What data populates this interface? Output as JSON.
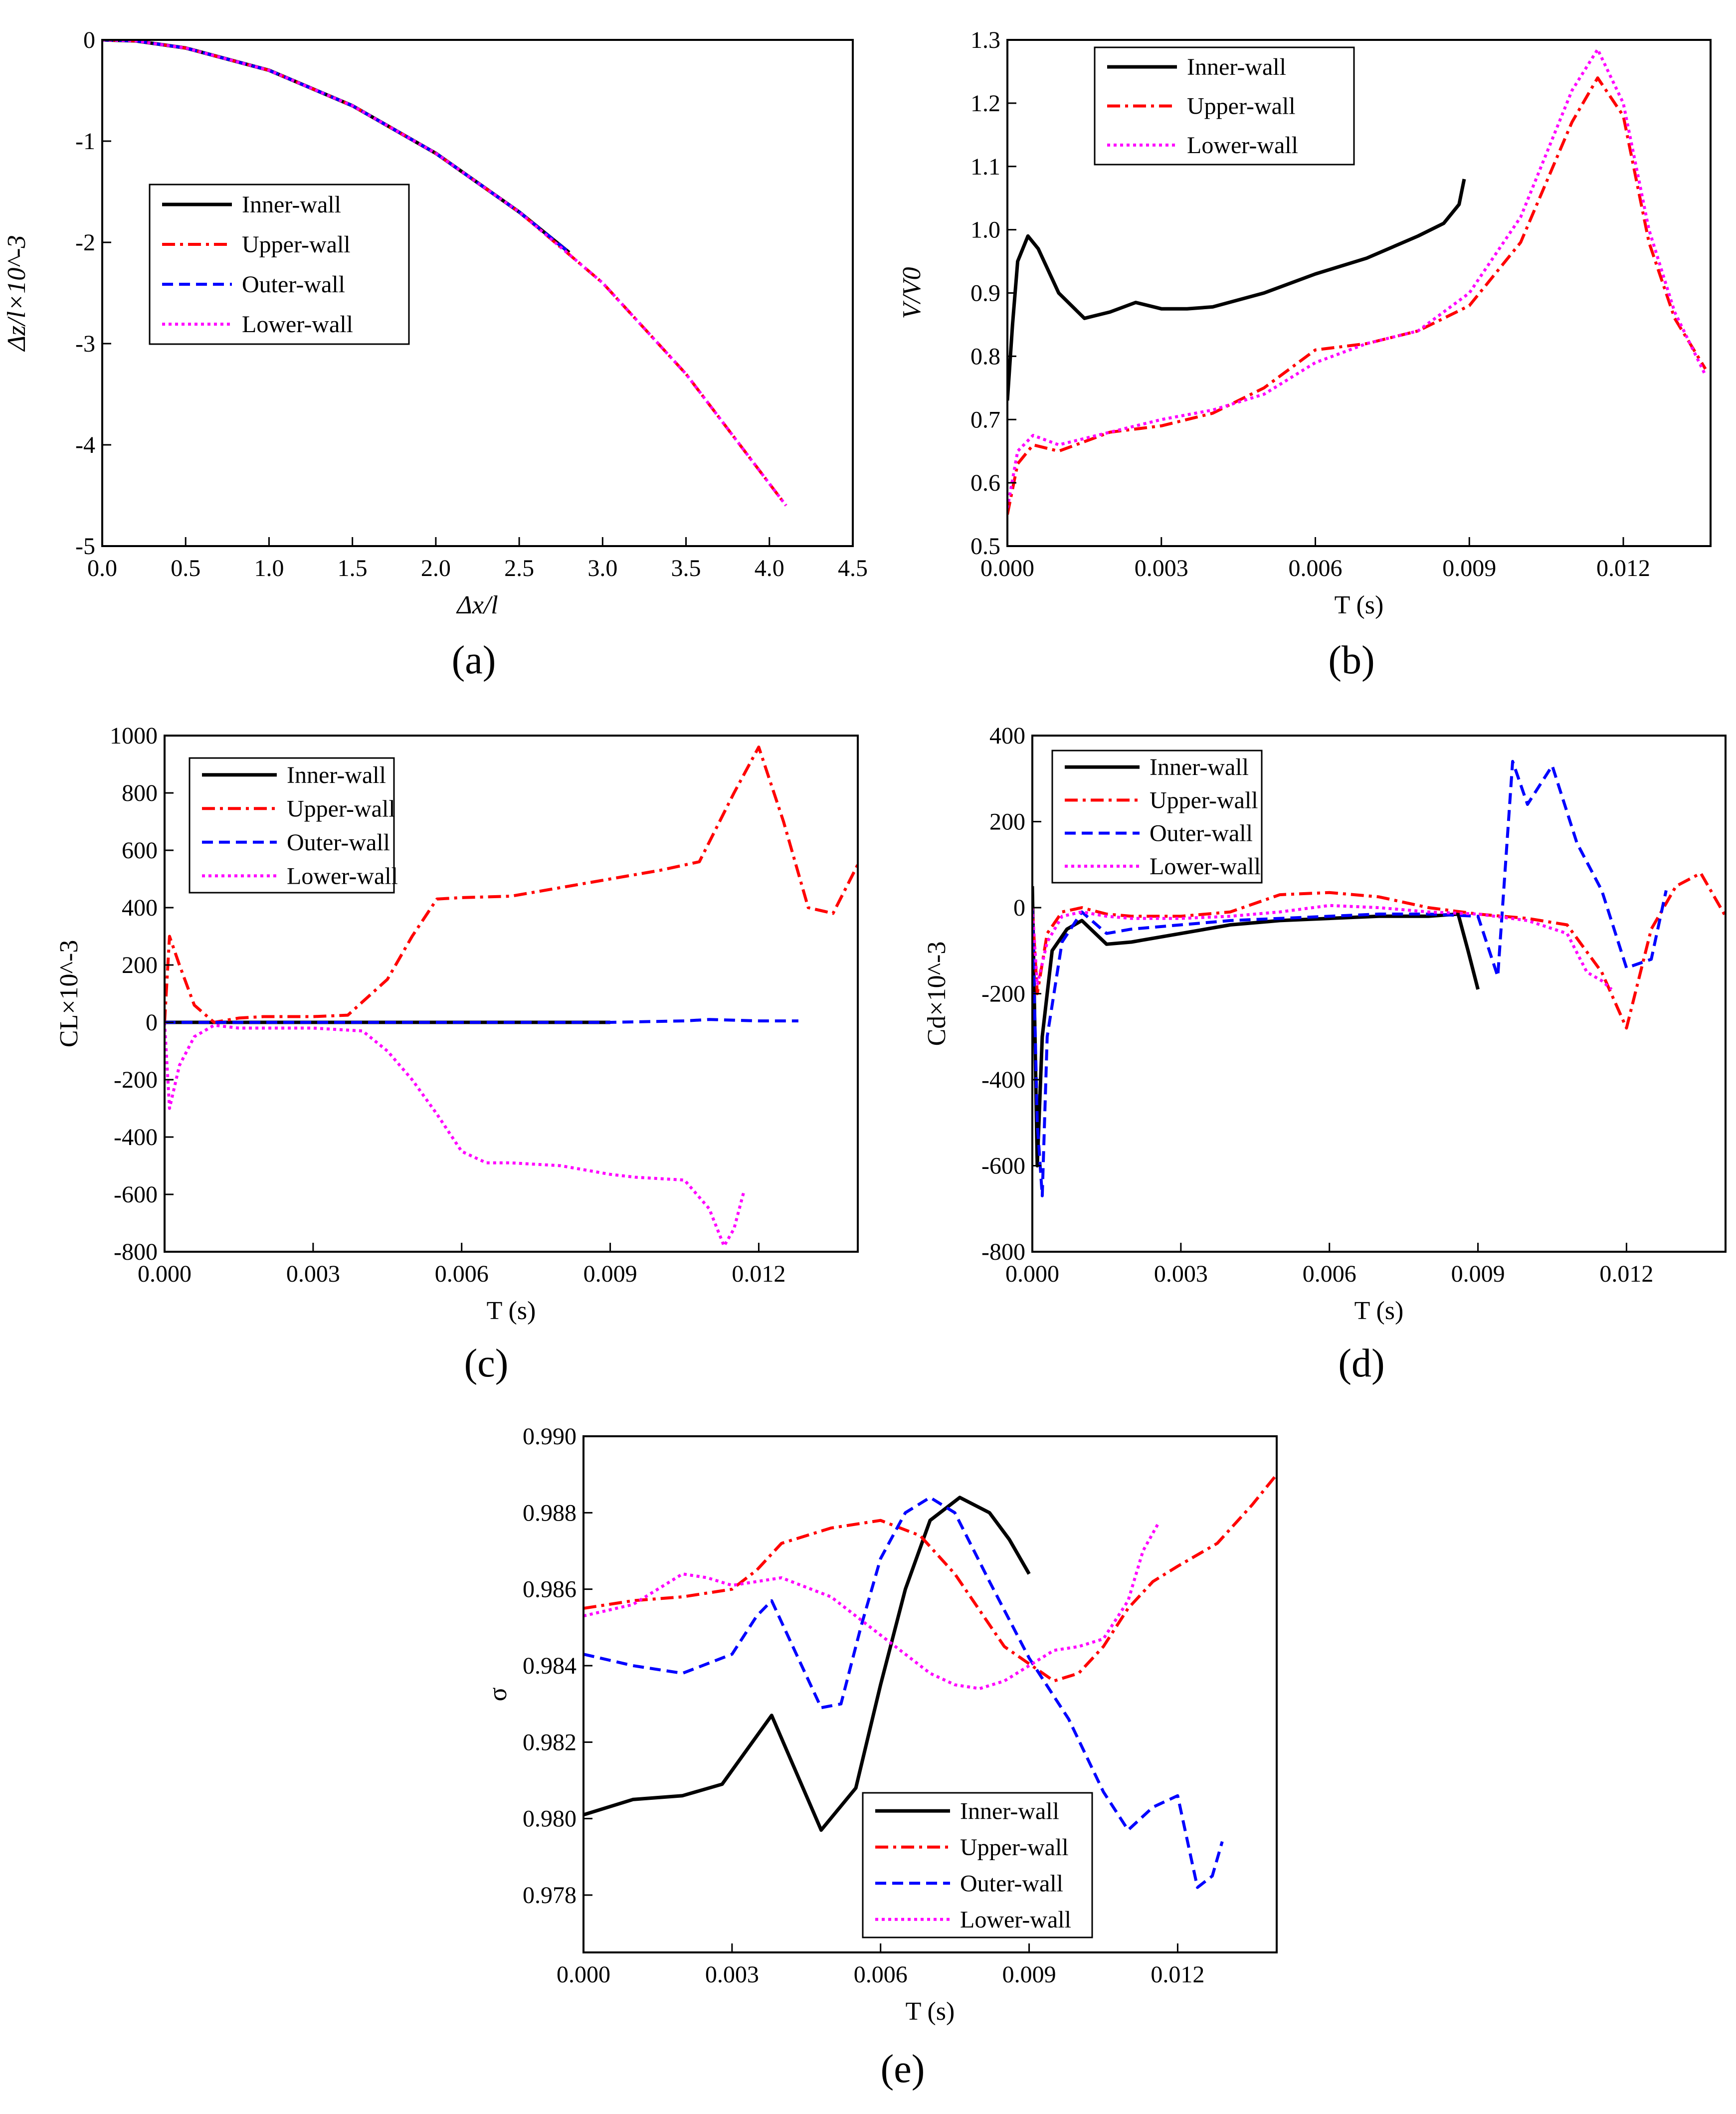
{
  "figure": {
    "colors": {
      "Inner-wall": "#000000",
      "Upper-wall": "#ff0000",
      "Outer-wall": "#0000ff",
      "Lower-wall": "#ff00ff"
    }
  },
  "chart_data": [
    {
      "id": "a",
      "type": "line",
      "panel_label": "(a)",
      "xlabel": "Δx/l",
      "ylabel": "Δz/l×10^-3",
      "xlim": [
        0,
        4.5
      ],
      "ylim": [
        -5,
        0
      ],
      "xticks": [
        0,
        0.5,
        1,
        1.5,
        2,
        2.5,
        3,
        3.5,
        4,
        4.5
      ],
      "xtick_labels": [
        "0.0",
        "0.5",
        "1.0",
        "1.5",
        "2.0",
        "2.5",
        "3.0",
        "3.5",
        "4.0",
        "4.5"
      ],
      "yticks": [
        -5,
        -4,
        -3,
        -2,
        -1,
        0
      ],
      "ytick_labels": [
        "-5",
        "-4",
        "-3",
        "-2",
        "-1",
        "0"
      ],
      "legend_position": "center-left",
      "series": [
        {
          "name": "Inner-wall",
          "x": [
            0,
            0.2,
            0.5,
            1.0,
            1.5,
            2.0,
            2.5,
            2.8
          ],
          "y": [
            0,
            -0.01,
            -0.08,
            -0.3,
            -0.65,
            -1.12,
            -1.7,
            -2.1
          ]
        },
        {
          "name": "Upper-wall",
          "x": [
            0,
            0.2,
            0.5,
            1.0,
            1.5,
            2.0,
            2.5,
            3.0,
            3.5,
            4.1
          ],
          "y": [
            0,
            -0.01,
            -0.08,
            -0.3,
            -0.65,
            -1.12,
            -1.7,
            -2.4,
            -3.3,
            -4.6
          ]
        },
        {
          "name": "Outer-wall",
          "x": [
            0,
            0.2,
            0.5,
            1.0,
            1.5,
            2.0,
            2.5,
            2.8
          ],
          "y": [
            0,
            -0.01,
            -0.08,
            -0.3,
            -0.65,
            -1.12,
            -1.7,
            -2.1
          ]
        },
        {
          "name": "Lower-wall",
          "x": [
            0,
            0.2,
            0.5,
            1.0,
            1.5,
            2.0,
            2.5,
            3.0,
            3.5,
            4.1
          ],
          "y": [
            0,
            -0.01,
            -0.08,
            -0.3,
            -0.65,
            -1.12,
            -1.7,
            -2.4,
            -3.3,
            -4.6
          ]
        }
      ]
    },
    {
      "id": "b",
      "type": "line",
      "panel_label": "(b)",
      "xlabel": "T (s)",
      "ylabel": "V/V0",
      "xlim": [
        0,
        0.0137
      ],
      "ylim": [
        0.5,
        1.3
      ],
      "xticks": [
        0,
        0.003,
        0.006,
        0.009,
        0.012
      ],
      "xtick_labels": [
        "0.000",
        "0.003",
        "0.006",
        "0.009",
        "0.012"
      ],
      "yticks": [
        0.5,
        0.6,
        0.7,
        0.8,
        0.9,
        1.0,
        1.1,
        1.2,
        1.3
      ],
      "ytick_labels": [
        "0.5",
        "0.6",
        "0.7",
        "0.8",
        "0.9",
        "1.0",
        "1.1",
        "1.2",
        "1.3"
      ],
      "legend_position": "top-left",
      "series": [
        {
          "name": "Inner-wall",
          "x": [
            0,
            0.0001,
            0.0002,
            0.0004,
            0.0006,
            0.001,
            0.0015,
            0.002,
            0.0025,
            0.003,
            0.0035,
            0.004,
            0.005,
            0.006,
            0.007,
            0.008,
            0.0085,
            0.0088,
            0.0089
          ],
          "y": [
            0.73,
            0.85,
            0.95,
            0.99,
            0.97,
            0.9,
            0.86,
            0.87,
            0.885,
            0.875,
            0.875,
            0.878,
            0.9,
            0.93,
            0.955,
            0.99,
            1.01,
            1.04,
            1.08
          ]
        },
        {
          "name": "Upper-wall",
          "x": [
            0,
            0.0002,
            0.0005,
            0.001,
            0.002,
            0.003,
            0.004,
            0.005,
            0.006,
            0.007,
            0.008,
            0.009,
            0.01,
            0.011,
            0.0115,
            0.012,
            0.0125,
            0.013,
            0.0136
          ],
          "y": [
            0.55,
            0.63,
            0.66,
            0.65,
            0.68,
            0.69,
            0.71,
            0.75,
            0.81,
            0.82,
            0.84,
            0.88,
            0.98,
            1.17,
            1.24,
            1.18,
            0.98,
            0.86,
            0.78
          ]
        },
        {
          "name": "Lower-wall",
          "x": [
            0,
            0.0002,
            0.0005,
            0.001,
            0.002,
            0.003,
            0.004,
            0.005,
            0.006,
            0.007,
            0.008,
            0.009,
            0.01,
            0.011,
            0.0115,
            0.012,
            0.0125,
            0.013,
            0.0136
          ],
          "y": [
            0.56,
            0.65,
            0.675,
            0.66,
            0.68,
            0.7,
            0.715,
            0.74,
            0.79,
            0.82,
            0.84,
            0.9,
            1.02,
            1.22,
            1.285,
            1.2,
            1.0,
            0.87,
            0.77
          ]
        }
      ]
    },
    {
      "id": "c",
      "type": "line",
      "panel_label": "(c)",
      "xlabel": "T (s)",
      "ylabel": "CL×10^-3",
      "xlim": [
        0,
        0.014
      ],
      "ylim": [
        -800,
        1000
      ],
      "xticks": [
        0,
        0.003,
        0.006,
        0.009,
        0.012
      ],
      "xtick_labels": [
        "0.000",
        "0.003",
        "0.006",
        "0.009",
        "0.012"
      ],
      "yticks": [
        -800,
        -600,
        -400,
        -200,
        0,
        200,
        400,
        600,
        800,
        1000
      ],
      "ytick_labels": [
        "-800",
        "-600",
        "-400",
        "-200",
        "0",
        "200",
        "400",
        "600",
        "800",
        "1000"
      ],
      "legend_position": "top-left",
      "series": [
        {
          "name": "Inner-wall",
          "x": [
            0,
            0.003,
            0.006,
            0.009
          ],
          "y": [
            0,
            0,
            0,
            0
          ]
        },
        {
          "name": "Upper-wall",
          "x": [
            0,
            0.0001,
            0.0003,
            0.0006,
            0.001,
            0.0015,
            0.002,
            0.003,
            0.0037,
            0.0045,
            0.005,
            0.0055,
            0.006,
            0.007,
            0.008,
            0.009,
            0.01,
            0.0108,
            0.0115,
            0.012,
            0.0125,
            0.013,
            0.0135,
            0.014
          ],
          "y": [
            0,
            300,
            200,
            60,
            0,
            15,
            20,
            20,
            25,
            150,
            300,
            430,
            435,
            440,
            470,
            500,
            530,
            560,
            800,
            960,
            700,
            400,
            380,
            550
          ]
        },
        {
          "name": "Outer-wall",
          "x": [
            0,
            0.003,
            0.006,
            0.009,
            0.0105,
            0.011,
            0.012,
            0.0128
          ],
          "y": [
            0,
            0,
            0,
            0,
            5,
            10,
            5,
            5
          ]
        },
        {
          "name": "Lower-wall",
          "x": [
            0,
            0.0001,
            0.0003,
            0.0006,
            0.001,
            0.0015,
            0.002,
            0.003,
            0.0035,
            0.004,
            0.0045,
            0.005,
            0.0055,
            0.006,
            0.0065,
            0.007,
            0.008,
            0.009,
            0.0095,
            0.0105,
            0.011,
            0.0113,
            0.0115,
            0.0117
          ],
          "y": [
            0,
            -300,
            -150,
            -50,
            -10,
            -20,
            -20,
            -20,
            -25,
            -30,
            -100,
            -200,
            -320,
            -450,
            -490,
            -490,
            -500,
            -530,
            -540,
            -550,
            -650,
            -780,
            -720,
            -590
          ]
        }
      ]
    },
    {
      "id": "d",
      "type": "line",
      "panel_label": "(d)",
      "xlabel": "T (s)",
      "ylabel": "Cd×10^-3",
      "xlim": [
        0,
        0.014
      ],
      "ylim": [
        -800,
        400
      ],
      "xticks": [
        0,
        0.003,
        0.006,
        0.009,
        0.012
      ],
      "xtick_labels": [
        "0.000",
        "0.003",
        "0.006",
        "0.009",
        "0.012"
      ],
      "yticks": [
        -800,
        -600,
        -400,
        -200,
        0,
        200,
        400
      ],
      "ytick_labels": [
        "-800",
        "-600",
        "-400",
        "-200",
        "0",
        "200",
        "400"
      ],
      "legend_position": "top-left",
      "series": [
        {
          "name": "Inner-wall",
          "x": [
            0,
            0.0001,
            0.0002,
            0.0004,
            0.0007,
            0.001,
            0.0015,
            0.002,
            0.003,
            0.004,
            0.005,
            0.006,
            0.007,
            0.008,
            0.0086,
            0.0088,
            0.009
          ],
          "y": [
            50,
            -600,
            -300,
            -100,
            -50,
            -30,
            -85,
            -80,
            -60,
            -40,
            -30,
            -25,
            -20,
            -20,
            -15,
            -100,
            -190
          ]
        },
        {
          "name": "Upper-wall",
          "x": [
            0,
            0.0001,
            0.0003,
            0.0006,
            0.001,
            0.0015,
            0.002,
            0.003,
            0.004,
            0.005,
            0.006,
            0.007,
            0.008,
            0.009,
            0.01,
            0.0108,
            0.0115,
            0.012,
            0.0125,
            0.013,
            0.0135,
            0.014
          ],
          "y": [
            0,
            -200,
            -60,
            -10,
            0,
            -15,
            -20,
            -20,
            -10,
            30,
            35,
            25,
            0,
            -15,
            -25,
            -40,
            -150,
            -280,
            -50,
            50,
            80,
            -20
          ]
        },
        {
          "name": "Outer-wall",
          "x": [
            0,
            0.0001,
            0.0002,
            0.0003,
            0.0006,
            0.001,
            0.0015,
            0.002,
            0.003,
            0.004,
            0.005,
            0.006,
            0.007,
            0.008,
            0.009,
            0.0094,
            0.0097,
            0.01,
            0.0105,
            0.011,
            0.0115,
            0.012,
            0.0125,
            0.0128
          ],
          "y": [
            0,
            -500,
            -670,
            -300,
            -80,
            -10,
            -60,
            -50,
            -40,
            -30,
            -25,
            -20,
            -15,
            -15,
            -20,
            -160,
            340,
            240,
            330,
            150,
            40,
            -140,
            -120,
            40
          ]
        },
        {
          "name": "Lower-wall",
          "x": [
            0,
            0.0001,
            0.0003,
            0.0006,
            0.001,
            0.0015,
            0.002,
            0.003,
            0.004,
            0.005,
            0.006,
            0.007,
            0.008,
            0.009,
            0.01,
            0.0108,
            0.0112,
            0.0115,
            0.0117
          ],
          "y": [
            0,
            -180,
            -80,
            -20,
            -10,
            -20,
            -25,
            -25,
            -20,
            -10,
            5,
            0,
            -10,
            -15,
            -30,
            -60,
            -150,
            -170,
            -190
          ]
        }
      ]
    },
    {
      "id": "e",
      "type": "line",
      "panel_label": "(e)",
      "xlabel": "T (s)",
      "ylabel": "σ",
      "xlim": [
        0,
        0.014
      ],
      "ylim": [
        0.9765,
        0.99
      ],
      "xticks": [
        0,
        0.003,
        0.006,
        0.009,
        0.012
      ],
      "xtick_labels": [
        "0.000",
        "0.003",
        "0.006",
        "0.009",
        "0.012"
      ],
      "yticks": [
        0.978,
        0.98,
        0.982,
        0.984,
        0.986,
        0.988,
        0.99
      ],
      "ytick_labels": [
        "0.978",
        "0.980",
        "0.982",
        "0.984",
        "0.986",
        "0.988",
        "0.990"
      ],
      "legend_position": "bottom-right",
      "series": [
        {
          "name": "Inner-wall",
          "x": [
            0,
            0.001,
            0.002,
            0.0028,
            0.0033,
            0.0038,
            0.0042,
            0.0048,
            0.0055,
            0.006,
            0.0065,
            0.007,
            0.0076,
            0.0082,
            0.0086,
            0.009
          ],
          "y": [
            0.9801,
            0.9805,
            0.9806,
            0.9809,
            0.9818,
            0.9827,
            0.9815,
            0.9797,
            0.9808,
            0.9835,
            0.986,
            0.9878,
            0.9884,
            0.988,
            0.9873,
            0.9864
          ]
        },
        {
          "name": "Upper-wall",
          "x": [
            0,
            0.001,
            0.002,
            0.003,
            0.0035,
            0.004,
            0.005,
            0.006,
            0.0068,
            0.0075,
            0.0085,
            0.0095,
            0.01,
            0.0105,
            0.011,
            0.0115,
            0.012,
            0.0128,
            0.0135,
            0.014
          ],
          "y": [
            0.9855,
            0.9857,
            0.9858,
            0.986,
            0.9865,
            0.9872,
            0.9876,
            0.9878,
            0.9874,
            0.9864,
            0.9845,
            0.9836,
            0.9838,
            0.9845,
            0.9855,
            0.9862,
            0.9866,
            0.9872,
            0.9882,
            0.989
          ]
        },
        {
          "name": "Outer-wall",
          "x": [
            0,
            0.001,
            0.002,
            0.003,
            0.0035,
            0.0038,
            0.0043,
            0.0048,
            0.0052,
            0.0056,
            0.006,
            0.0065,
            0.007,
            0.0075,
            0.0082,
            0.009,
            0.0098,
            0.0105,
            0.011,
            0.0115,
            0.012,
            0.0124,
            0.0127,
            0.0129
          ],
          "y": [
            0.9843,
            0.984,
            0.9838,
            0.9843,
            0.9853,
            0.9857,
            0.9843,
            0.9829,
            0.983,
            0.985,
            0.9868,
            0.988,
            0.9884,
            0.988,
            0.9862,
            0.9842,
            0.9826,
            0.9807,
            0.9797,
            0.9803,
            0.9806,
            0.9782,
            0.9785,
            0.9794
          ]
        },
        {
          "name": "Lower-wall",
          "x": [
            0,
            0.001,
            0.0015,
            0.002,
            0.0025,
            0.003,
            0.004,
            0.005,
            0.006,
            0.007,
            0.0075,
            0.008,
            0.0085,
            0.009,
            0.0095,
            0.01,
            0.0105,
            0.011,
            0.0113,
            0.0116
          ],
          "y": [
            0.9853,
            0.9856,
            0.986,
            0.9864,
            0.9863,
            0.9861,
            0.9863,
            0.9858,
            0.9848,
            0.9838,
            0.9835,
            0.9834,
            0.9836,
            0.984,
            0.9844,
            0.9845,
            0.9847,
            0.9857,
            0.987,
            0.9877
          ]
        }
      ]
    }
  ]
}
